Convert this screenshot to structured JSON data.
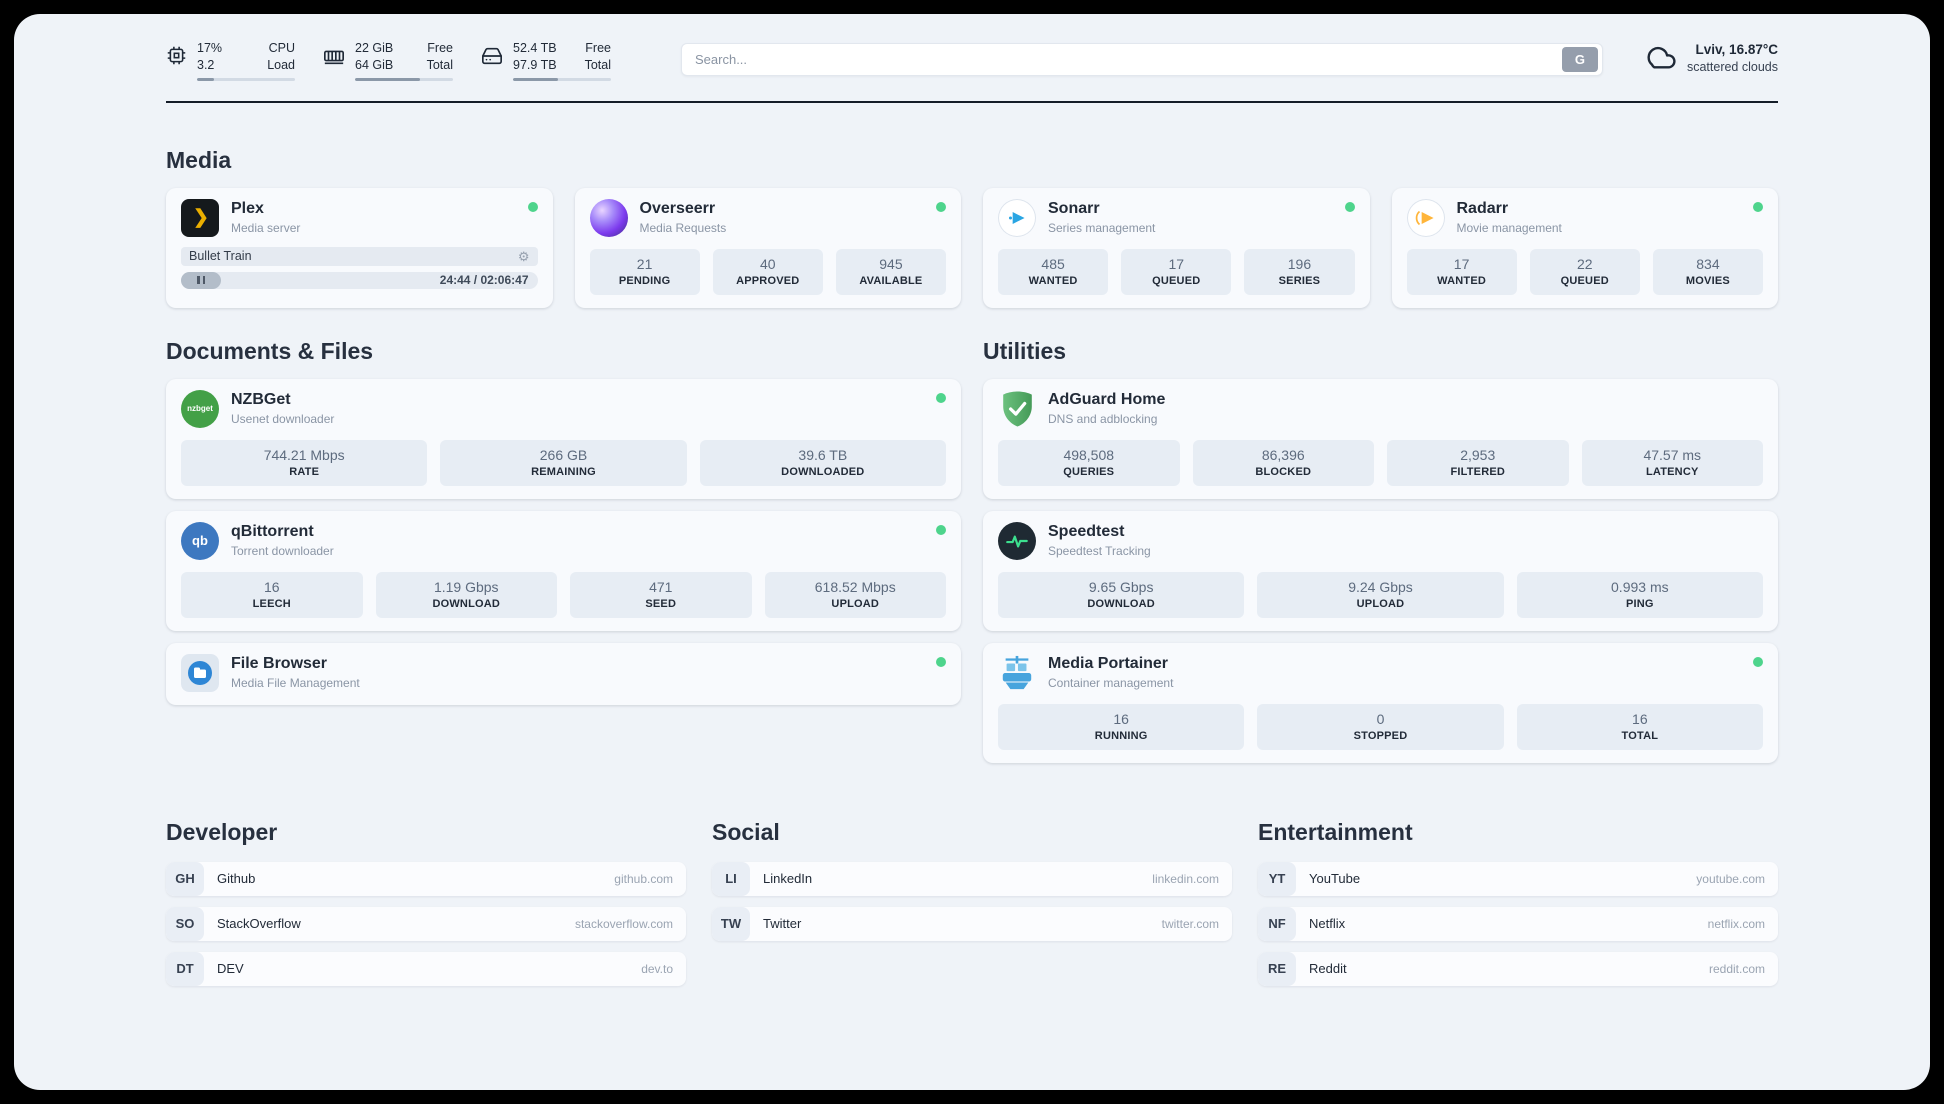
{
  "colors": {
    "status_online": "#4ed48c",
    "page_background": "#eff3f8",
    "card_background": "#f8fafd",
    "stat_background": "#e7edf4"
  },
  "icons": {
    "plex_chevron": "❯",
    "settings_gear": "⚙",
    "nzbget_text": "nzbget",
    "qbittorrent_text": "qb"
  },
  "header": {
    "cpu": {
      "usage": "17%",
      "load": "3.2",
      "label_top": "CPU",
      "label_bottom": "Load",
      "progress": 17
    },
    "ram": {
      "free": "22 GiB",
      "total": "64 GiB",
      "label_top": "Free",
      "label_bottom": "Total",
      "progress": 66
    },
    "disk": {
      "free": "52.4 TB",
      "total": "97.9 TB",
      "label_top": "Free",
      "label_bottom": "Total",
      "progress": 46
    },
    "search": {
      "placeholder": "Search...",
      "button_label": "G"
    },
    "weather": {
      "location": "Lviv, 16.87°C",
      "condition": "scattered clouds"
    }
  },
  "media": {
    "heading": "Media",
    "plex": {
      "title": "Plex",
      "subtitle": "Media server",
      "now_playing": "Bullet Train",
      "time": "24:44 / 02:06:47"
    },
    "overseerr": {
      "title": "Overseerr",
      "subtitle": "Media Requests",
      "stats": [
        {
          "value": "21",
          "label": "PENDING"
        },
        {
          "value": "40",
          "label": "APPROVED"
        },
        {
          "value": "945",
          "label": "AVAILABLE"
        }
      ]
    },
    "sonarr": {
      "title": "Sonarr",
      "subtitle": "Series management",
      "stats": [
        {
          "value": "485",
          "label": "WANTED"
        },
        {
          "value": "17",
          "label": "QUEUED"
        },
        {
          "value": "196",
          "label": "SERIES"
        }
      ]
    },
    "radarr": {
      "title": "Radarr",
      "subtitle": "Movie management",
      "stats": [
        {
          "value": "17",
          "label": "WANTED"
        },
        {
          "value": "22",
          "label": "QUEUED"
        },
        {
          "value": "834",
          "label": "MOVIES"
        }
      ]
    }
  },
  "documents": {
    "heading": "Documents & Files",
    "nzbget": {
      "title": "NZBGet",
      "subtitle": "Usenet downloader",
      "stats": [
        {
          "value": "744.21 Mbps",
          "label": "RATE"
        },
        {
          "value": "266 GB",
          "label": "REMAINING"
        },
        {
          "value": "39.6 TB",
          "label": "DOWNLOADED"
        }
      ]
    },
    "qbittorrent": {
      "title": "qBittorrent",
      "subtitle": "Torrent downloader",
      "stats": [
        {
          "value": "16",
          "label": "LEECH"
        },
        {
          "value": "1.19 Gbps",
          "label": "DOWNLOAD"
        },
        {
          "value": "471",
          "label": "SEED"
        },
        {
          "value": "618.52 Mbps",
          "label": "UPLOAD"
        }
      ]
    },
    "filebrowser": {
      "title": "File Browser",
      "subtitle": "Media File Management"
    }
  },
  "utilities": {
    "heading": "Utilities",
    "adguard": {
      "title": "AdGuard Home",
      "subtitle": "DNS and adblocking",
      "stats": [
        {
          "value": "498,508",
          "label": "QUERIES"
        },
        {
          "value": "86,396",
          "label": "BLOCKED"
        },
        {
          "value": "2,953",
          "label": "FILTERED"
        },
        {
          "value": "47.57 ms",
          "label": "LATENCY"
        }
      ]
    },
    "speedtest": {
      "title": "Speedtest",
      "subtitle": "Speedtest Tracking",
      "stats": [
        {
          "value": "9.65 Gbps",
          "label": "DOWNLOAD"
        },
        {
          "value": "9.24 Gbps",
          "label": "UPLOAD"
        },
        {
          "value": "0.993 ms",
          "label": "PING"
        }
      ]
    },
    "portainer": {
      "title": "Media Portainer",
      "subtitle": "Container management",
      "stats": [
        {
          "value": "16",
          "label": "RUNNING"
        },
        {
          "value": "0",
          "label": "STOPPED"
        },
        {
          "value": "16",
          "label": "TOTAL"
        }
      ]
    }
  },
  "bookmarks": [
    {
      "heading": "Developer",
      "links": [
        {
          "abbr": "GH",
          "name": "Github",
          "url": "github.com"
        },
        {
          "abbr": "SO",
          "name": "StackOverflow",
          "url": "stackoverflow.com"
        },
        {
          "abbr": "DT",
          "name": "DEV",
          "url": "dev.to"
        }
      ]
    },
    {
      "heading": "Social",
      "links": [
        {
          "abbr": "LI",
          "name": "LinkedIn",
          "url": "linkedin.com"
        },
        {
          "abbr": "TW",
          "name": "Twitter",
          "url": "twitter.com"
        }
      ]
    },
    {
      "heading": "Entertainment",
      "links": [
        {
          "abbr": "YT",
          "name": "YouTube",
          "url": "youtube.com"
        },
        {
          "abbr": "NF",
          "name": "Netflix",
          "url": "netflix.com"
        },
        {
          "abbr": "RE",
          "name": "Reddit",
          "url": "reddit.com"
        }
      ]
    }
  ]
}
